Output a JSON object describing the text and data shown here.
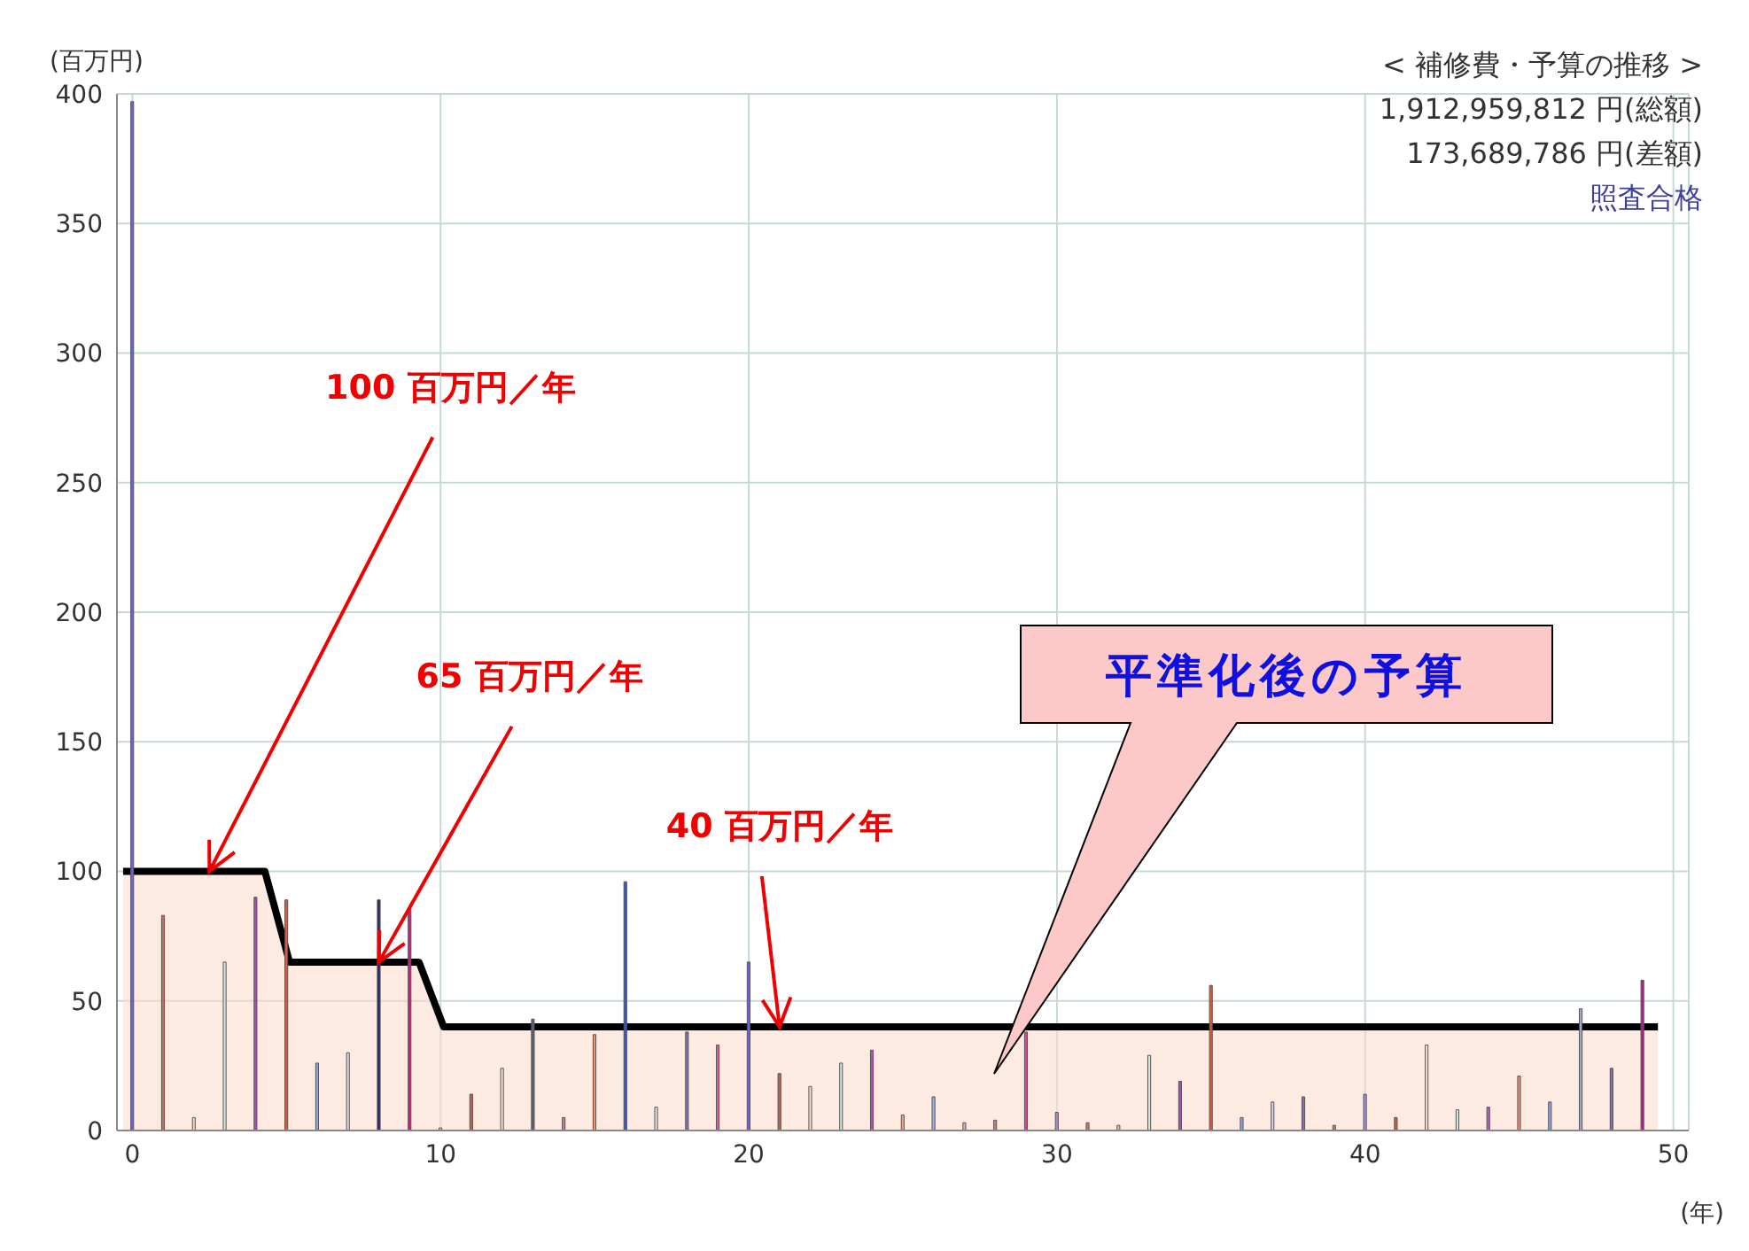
{
  "chart_data": {
    "type": "bar",
    "title": "< 補修費・予算の推移 >",
    "ylabel": "(百万円)",
    "xlabel": "(年)",
    "x": [
      0,
      1,
      2,
      3,
      4,
      5,
      6,
      7,
      8,
      9,
      10,
      11,
      12,
      13,
      14,
      15,
      16,
      17,
      18,
      19,
      20,
      21,
      22,
      23,
      24,
      25,
      26,
      27,
      28,
      29,
      30,
      31,
      32,
      33,
      34,
      35,
      36,
      37,
      38,
      39,
      40,
      41,
      42,
      43,
      44,
      45,
      46,
      47,
      48,
      49
    ],
    "series": [
      {
        "values": [
          397,
          83,
          5,
          65,
          90,
          89,
          26,
          30,
          89,
          86,
          1,
          14,
          24,
          43,
          5,
          37,
          96,
          9,
          38,
          33,
          65,
          22,
          17,
          26,
          31,
          6,
          13,
          3,
          4,
          38,
          7,
          3,
          2,
          29,
          19,
          56,
          5,
          11,
          13,
          2,
          14,
          5,
          33,
          8,
          9,
          21,
          11,
          47,
          24,
          58
        ],
        "colors": [
          "#7062d8",
          "#c07060",
          "#f0d8b0",
          "#d8e8e0",
          "#a050b0",
          "#e05a38",
          "#90a0e0",
          "#d8d8e8",
          "#262670",
          "#c02480",
          "#e0c0c0",
          "#c06050",
          "#f8e0c0",
          "#606070",
          "#c080a0",
          "#f09070",
          "#3558d0",
          "#e0e0e0",
          "#8070b0",
          "#d060a0",
          "#7060e0",
          "#c06050",
          "#f8e0c0",
          "#d0e8e0",
          "#b050b0",
          "#f0a080",
          "#a0b0e8",
          "#d0b0c0",
          "#c08090",
          "#e04090",
          "#a090d0",
          "#c08070",
          "#e0c0a0",
          "#d8e8e0",
          "#a050b0",
          "#e05a38",
          "#90a0e0",
          "#d0d0e8",
          "#8070b0",
          "#c08070",
          "#a090e0",
          "#c06050",
          "#f8e0c0",
          "#d0e8e0",
          "#b060c0",
          "#f09070",
          "#90a0e0",
          "#a0a8d0",
          "#8070b0",
          "#c01890"
        ]
      },
      {
        "type": "area",
        "x": [
          -0.3,
          4.3,
          5.1,
          9.3,
          10.1,
          49.5
        ],
        "values": [
          100,
          100,
          65,
          65,
          40,
          40
        ],
        "color": "#fbd8c8"
      }
    ],
    "xlim": [
      -0.5,
      50.5
    ],
    "xticks": [
      0,
      10,
      20,
      30,
      40,
      50
    ],
    "ylim": [
      0,
      400
    ],
    "yticks": [
      0,
      50,
      100,
      150,
      200,
      250,
      300,
      350,
      400
    ],
    "grid": true,
    "annotations": [
      "1,912,959,812 円(総額)",
      "173,689,786 円(差額)",
      "照査合格",
      {
        "text": "100 百万円／年",
        "x": 2.5,
        "y": 100
      },
      {
        "text": "65 百万円／年",
        "x": 8,
        "y": 65
      },
      {
        "text": "40 百万円／年",
        "x": 21,
        "y": 40
      },
      "平準化後の予算"
    ]
  }
}
